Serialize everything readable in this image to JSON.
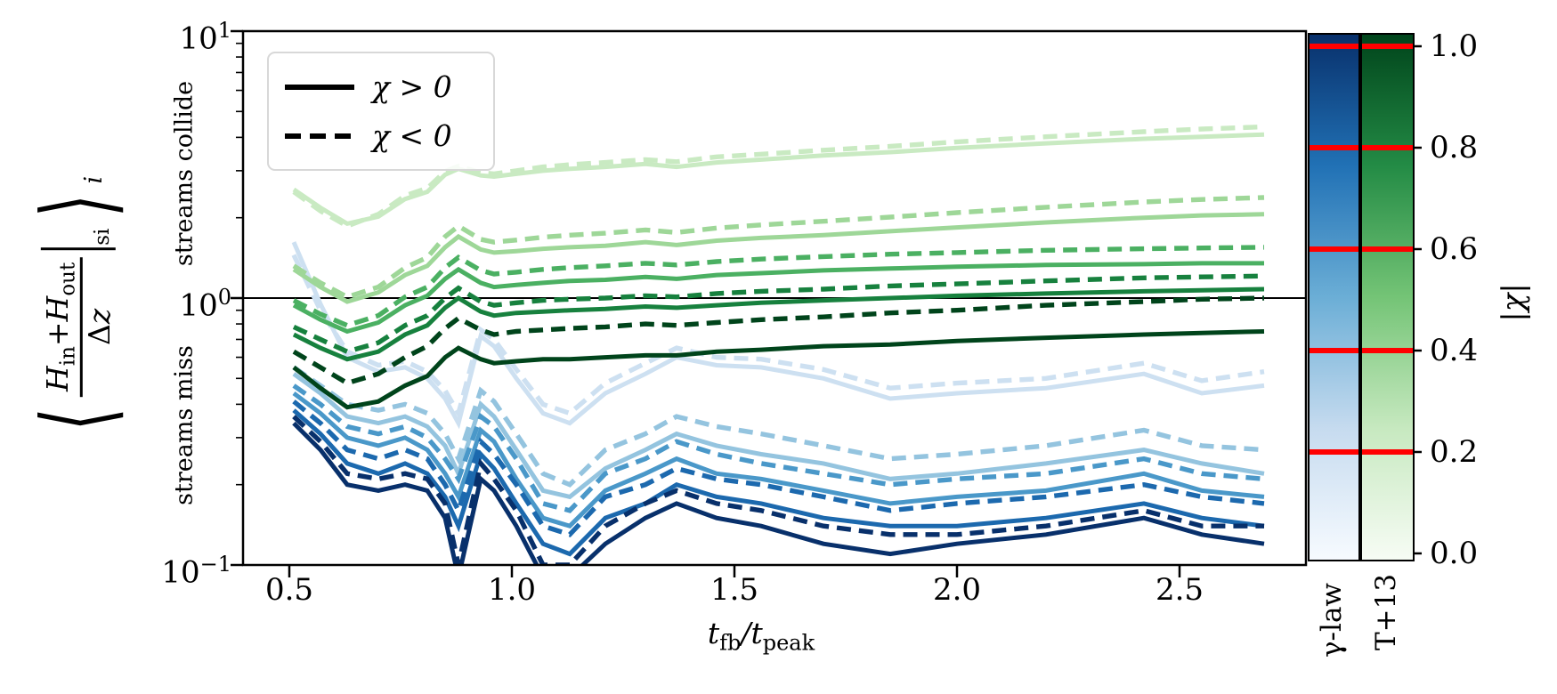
{
  "figure": {
    "legend": {
      "solid_label": "χ > 0",
      "dashed_label": "χ < 0"
    },
    "y_axis": {
      "tick_labels": [
        {
          "base": "10",
          "exp": "1"
        },
        {
          "base": "10",
          "exp": "0"
        },
        {
          "base": "10",
          "exp": "−1"
        }
      ],
      "region_upper": "streams collide",
      "region_lower": "streams miss",
      "label_parts": {
        "langle": "⟨",
        "h1": "H",
        "h1_sub": "in",
        "plus": "+",
        "h2": "H",
        "h2_sub": "out",
        "den_delta": "Δ",
        "den_z": "z",
        "bar_sub": "si",
        "rangle": "⟩",
        "outer_sub": "i"
      }
    },
    "x_axis": {
      "tick_labels": [
        "0.5",
        "1.0",
        "1.5",
        "2.0",
        "2.5"
      ],
      "label_parts": {
        "t1": "t",
        "t1_sub": "fb",
        "slash": "/",
        "t2": "t",
        "t2_sub": "peak"
      }
    },
    "colorbar": {
      "tick_labels": [
        "1.0",
        "0.8",
        "0.6",
        "0.4",
        "0.2",
        "0.0"
      ],
      "axis_label": "|χ|",
      "bar_labels": [
        "γ-law",
        "T+13"
      ],
      "red_line_color": "#ff0000",
      "red_line_values": [
        0.2,
        0.4,
        0.6,
        0.8,
        1.0
      ]
    }
  },
  "chart_data": {
    "type": "line",
    "xlabel": "t_fb / t_peak",
    "ylabel": "⟨ (H_in + H_out)/Δz |_si ⟩_i",
    "x_scale": "linear",
    "y_scale": "log",
    "xlim": [
      0.396,
      2.784
    ],
    "ylim": [
      0.1,
      10
    ],
    "x_ticks": [
      0.5,
      1.0,
      1.5,
      2.0,
      2.5
    ],
    "y_ticks": [
      10,
      1,
      0.1
    ],
    "reference_line_y": 1.0,
    "annotations": [
      "streams collide",
      "streams miss"
    ],
    "legend_position": "upper left",
    "x": [
      0.51,
      0.57,
      0.63,
      0.7,
      0.76,
      0.81,
      0.85,
      0.88,
      0.93,
      0.96,
      1.01,
      1.07,
      1.13,
      1.21,
      1.3,
      1.37,
      1.46,
      1.56,
      1.7,
      1.85,
      2.0,
      2.2,
      2.42,
      2.55,
      2.69
    ],
    "series": [
      {
        "name": "gamma-law |chi|=0.2 chi>0",
        "family": "gamma-law",
        "chi_abs": 0.2,
        "chi_sign": ">0",
        "style": "solid",
        "color": "#cde0f1",
        "values": [
          1.62,
          0.95,
          0.6,
          0.53,
          0.55,
          0.5,
          0.42,
          0.34,
          0.72,
          0.66,
          0.5,
          0.37,
          0.34,
          0.44,
          0.52,
          0.6,
          0.56,
          0.55,
          0.5,
          0.42,
          0.44,
          0.46,
          0.52,
          0.44,
          0.47
        ]
      },
      {
        "name": "gamma-law |chi|=0.2 chi<0",
        "family": "gamma-law",
        "chi_abs": 0.2,
        "chi_sign": "<0",
        "style": "dashed",
        "color": "#cde0f1",
        "values": [
          1.45,
          0.9,
          0.63,
          0.56,
          0.58,
          0.53,
          0.45,
          0.37,
          0.76,
          0.7,
          0.54,
          0.4,
          0.37,
          0.48,
          0.57,
          0.65,
          0.6,
          0.59,
          0.54,
          0.46,
          0.48,
          0.5,
          0.57,
          0.49,
          0.53
        ]
      },
      {
        "name": "gamma-law |chi|=0.4 chi>0",
        "family": "gamma-law",
        "chi_abs": 0.4,
        "chi_sign": ">0",
        "style": "solid",
        "color": "#94c4df",
        "values": [
          0.52,
          0.44,
          0.36,
          0.34,
          0.36,
          0.33,
          0.28,
          0.22,
          0.4,
          0.36,
          0.27,
          0.19,
          0.18,
          0.23,
          0.27,
          0.31,
          0.28,
          0.26,
          0.24,
          0.21,
          0.22,
          0.24,
          0.27,
          0.24,
          0.22
        ]
      },
      {
        "name": "gamma-law |chi|=0.4 chi<0",
        "family": "gamma-law",
        "chi_abs": 0.4,
        "chi_sign": "<0",
        "style": "dashed",
        "color": "#94c4df",
        "values": [
          0.55,
          0.47,
          0.4,
          0.38,
          0.4,
          0.37,
          0.31,
          0.25,
          0.45,
          0.41,
          0.31,
          0.22,
          0.2,
          0.27,
          0.31,
          0.36,
          0.33,
          0.31,
          0.28,
          0.25,
          0.26,
          0.28,
          0.32,
          0.28,
          0.27
        ]
      },
      {
        "name": "gamma-law |chi|=0.6 chi>0",
        "family": "gamma-law",
        "chi_abs": 0.6,
        "chi_sign": ">0",
        "style": "solid",
        "color": "#4a98c9",
        "values": [
          0.44,
          0.37,
          0.3,
          0.28,
          0.3,
          0.27,
          0.22,
          0.18,
          0.32,
          0.29,
          0.21,
          0.15,
          0.14,
          0.19,
          0.22,
          0.25,
          0.22,
          0.21,
          0.19,
          0.17,
          0.18,
          0.19,
          0.22,
          0.19,
          0.18
        ]
      },
      {
        "name": "gamma-law |chi|=0.6 chi<0",
        "family": "gamma-law",
        "chi_abs": 0.6,
        "chi_sign": "<0",
        "style": "dashed",
        "color": "#4a98c9",
        "values": [
          0.47,
          0.4,
          0.33,
          0.31,
          0.33,
          0.3,
          0.25,
          0.21,
          0.36,
          0.33,
          0.25,
          0.17,
          0.16,
          0.22,
          0.25,
          0.29,
          0.26,
          0.24,
          0.22,
          0.2,
          0.21,
          0.22,
          0.25,
          0.22,
          0.21
        ]
      },
      {
        "name": "gamma-law |chi|=0.8 chi>0",
        "family": "gamma-law",
        "chi_abs": 0.8,
        "chi_sign": ">0",
        "style": "solid",
        "color": "#1c69ae",
        "values": [
          0.38,
          0.31,
          0.24,
          0.22,
          0.24,
          0.22,
          0.18,
          0.14,
          0.26,
          0.23,
          0.17,
          0.12,
          0.11,
          0.15,
          0.17,
          0.2,
          0.18,
          0.17,
          0.15,
          0.14,
          0.14,
          0.15,
          0.17,
          0.15,
          0.14
        ]
      },
      {
        "name": "gamma-law |chi|=0.8 chi<0",
        "family": "gamma-law",
        "chi_abs": 0.8,
        "chi_sign": "<0",
        "style": "dashed",
        "color": "#1c69ae",
        "values": [
          0.41,
          0.34,
          0.27,
          0.25,
          0.27,
          0.25,
          0.2,
          0.16,
          0.29,
          0.26,
          0.2,
          0.14,
          0.13,
          0.18,
          0.2,
          0.23,
          0.21,
          0.2,
          0.18,
          0.16,
          0.17,
          0.18,
          0.2,
          0.18,
          0.17
        ]
      },
      {
        "name": "gamma-law |chi|=1.0 chi>0",
        "family": "gamma-law",
        "chi_abs": 1.0,
        "chi_sign": ">0",
        "style": "solid",
        "color": "#08306b",
        "values": [
          0.34,
          0.27,
          0.2,
          0.19,
          0.2,
          0.19,
          0.15,
          0.09,
          0.21,
          0.19,
          0.14,
          0.09,
          0.09,
          0.12,
          0.15,
          0.17,
          0.15,
          0.14,
          0.12,
          0.11,
          0.12,
          0.13,
          0.15,
          0.13,
          0.12
        ]
      },
      {
        "name": "gamma-law |chi|=1.0 chi<0",
        "family": "gamma-law",
        "chi_abs": 1.0,
        "chi_sign": "<0",
        "style": "dashed",
        "color": "#08306b",
        "values": [
          0.36,
          0.29,
          0.22,
          0.21,
          0.22,
          0.21,
          0.17,
          0.1,
          0.24,
          0.21,
          0.16,
          0.1,
          0.1,
          0.14,
          0.17,
          0.19,
          0.17,
          0.16,
          0.14,
          0.13,
          0.13,
          0.14,
          0.16,
          0.14,
          0.14
        ]
      },
      {
        "name": "T+13 |chi|=0.2 chi>0",
        "family": "T+13",
        "chi_abs": 0.2,
        "chi_sign": ">0",
        "style": "solid",
        "color": "#c9eac2",
        "values": [
          2.55,
          2.18,
          1.9,
          2.02,
          2.35,
          2.5,
          2.9,
          3.05,
          2.88,
          2.85,
          2.92,
          3.0,
          3.05,
          3.1,
          3.18,
          3.1,
          3.22,
          3.3,
          3.42,
          3.52,
          3.65,
          3.8,
          3.95,
          4.02,
          4.1
        ]
      },
      {
        "name": "T+13 |chi|=0.2 chi<0",
        "family": "T+13",
        "chi_abs": 0.2,
        "chi_sign": "<0",
        "style": "dashed",
        "color": "#c9eac2",
        "values": [
          2.5,
          2.12,
          1.86,
          2.06,
          2.42,
          2.58,
          2.98,
          3.12,
          2.95,
          2.92,
          3.0,
          3.1,
          3.16,
          3.22,
          3.3,
          3.24,
          3.38,
          3.46,
          3.58,
          3.7,
          3.85,
          4.02,
          4.2,
          4.3,
          4.38
        ]
      },
      {
        "name": "T+13 |chi|=0.4 chi>0",
        "family": "T+13",
        "chi_abs": 0.4,
        "chi_sign": ">0",
        "style": "solid",
        "color": "#9ed798",
        "values": [
          1.28,
          1.1,
          0.97,
          1.05,
          1.22,
          1.32,
          1.55,
          1.7,
          1.52,
          1.48,
          1.5,
          1.53,
          1.55,
          1.57,
          1.62,
          1.58,
          1.64,
          1.68,
          1.72,
          1.78,
          1.84,
          1.92,
          2.0,
          2.04,
          2.06
        ]
      },
      {
        "name": "T+13 |chi|=0.4 chi<0",
        "family": "T+13",
        "chi_abs": 0.4,
        "chi_sign": "<0",
        "style": "dashed",
        "color": "#9ed798",
        "values": [
          1.32,
          1.14,
          1.01,
          1.1,
          1.3,
          1.42,
          1.7,
          1.86,
          1.66,
          1.62,
          1.65,
          1.69,
          1.72,
          1.75,
          1.8,
          1.76,
          1.83,
          1.88,
          1.94,
          2.01,
          2.09,
          2.19,
          2.29,
          2.34,
          2.38
        ]
      },
      {
        "name": "T+13 |chi|=0.6 chi>0",
        "family": "T+13",
        "chi_abs": 0.6,
        "chi_sign": ">0",
        "style": "solid",
        "color": "#4bb062",
        "values": [
          0.94,
          0.83,
          0.75,
          0.81,
          0.94,
          1.02,
          1.18,
          1.28,
          1.14,
          1.1,
          1.12,
          1.14,
          1.16,
          1.17,
          1.2,
          1.18,
          1.22,
          1.24,
          1.27,
          1.29,
          1.31,
          1.33,
          1.34,
          1.35,
          1.35
        ]
      },
      {
        "name": "T+13 |chi|=0.6 chi<0",
        "family": "T+13",
        "chi_abs": 0.6,
        "chi_sign": "<0",
        "style": "dashed",
        "color": "#4bb062",
        "values": [
          0.98,
          0.87,
          0.79,
          0.86,
          1.01,
          1.1,
          1.3,
          1.42,
          1.27,
          1.23,
          1.25,
          1.28,
          1.3,
          1.32,
          1.35,
          1.33,
          1.37,
          1.4,
          1.43,
          1.46,
          1.48,
          1.51,
          1.53,
          1.54,
          1.55
        ]
      },
      {
        "name": "T+13 |chi|=0.8 chi>0",
        "family": "T+13",
        "chi_abs": 0.8,
        "chi_sign": ">0",
        "style": "solid",
        "color": "#17813e",
        "values": [
          0.73,
          0.65,
          0.59,
          0.63,
          0.73,
          0.79,
          0.92,
          1.0,
          0.89,
          0.86,
          0.88,
          0.89,
          0.9,
          0.91,
          0.93,
          0.92,
          0.94,
          0.96,
          0.98,
          1.0,
          1.02,
          1.04,
          1.06,
          1.07,
          1.08
        ]
      },
      {
        "name": "T+13 |chi|=0.8 chi<0",
        "family": "T+13",
        "chi_abs": 0.8,
        "chi_sign": "<0",
        "style": "dashed",
        "color": "#17813e",
        "values": [
          0.78,
          0.7,
          0.63,
          0.68,
          0.79,
          0.86,
          1.0,
          1.09,
          0.97,
          0.94,
          0.96,
          0.98,
          0.99,
          1.0,
          1.02,
          1.01,
          1.04,
          1.06,
          1.08,
          1.11,
          1.13,
          1.16,
          1.19,
          1.2,
          1.21
        ]
      },
      {
        "name": "T+13 |chi|=1.0 chi>0",
        "family": "T+13",
        "chi_abs": 1.0,
        "chi_sign": ">0",
        "style": "solid",
        "color": "#00441b",
        "values": [
          0.55,
          0.46,
          0.39,
          0.41,
          0.47,
          0.51,
          0.6,
          0.65,
          0.59,
          0.57,
          0.58,
          0.59,
          0.59,
          0.6,
          0.61,
          0.61,
          0.63,
          0.64,
          0.66,
          0.67,
          0.69,
          0.71,
          0.73,
          0.74,
          0.75
        ]
      },
      {
        "name": "T+13 |chi|=1.0 chi<0",
        "family": "T+13",
        "chi_abs": 1.0,
        "chi_sign": "<0",
        "style": "dashed",
        "color": "#00441b",
        "values": [
          0.63,
          0.55,
          0.48,
          0.52,
          0.6,
          0.66,
          0.77,
          0.84,
          0.76,
          0.73,
          0.75,
          0.76,
          0.77,
          0.78,
          0.8,
          0.79,
          0.81,
          0.83,
          0.85,
          0.88,
          0.9,
          0.94,
          0.97,
          0.99,
          1.0
        ]
      }
    ],
    "colorbars": [
      {
        "label": "γ-law",
        "colormap": "Blues",
        "gradient_top_to_bottom": [
          "#08306b",
          "#2171b5",
          "#6baed6",
          "#c6dbef",
          "#f7fbff"
        ],
        "range": [
          0.0,
          1.0
        ]
      },
      {
        "label": "T+13",
        "colormap": "Greens",
        "gradient_top_to_bottom": [
          "#00441b",
          "#238b45",
          "#74c476",
          "#c7e9c0",
          "#f7fcf5"
        ],
        "range": [
          0.0,
          1.0
        ]
      }
    ]
  }
}
